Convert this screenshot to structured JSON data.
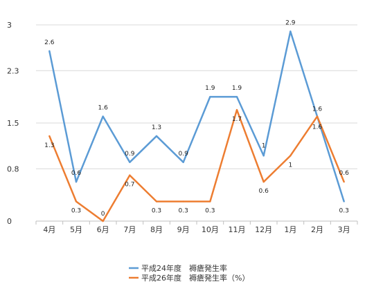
{
  "chart_data": {
    "type": "line",
    "categories": [
      "4月",
      "5月",
      "6月",
      "7月",
      "8月",
      "9月",
      "10月",
      "11月",
      "12月",
      "1月",
      "2月",
      "3月"
    ],
    "yticks": [
      "0",
      "0.8",
      "1.5",
      "2.3",
      "3"
    ],
    "ylim": [
      0,
      3
    ],
    "grid": true,
    "legend_position": "bottom",
    "series": [
      {
        "name": "平成24年度　褥瘡発生率",
        "color": "#5b9bd5",
        "values": [
          2.6,
          0.6,
          1.6,
          0.9,
          1.3,
          0.9,
          1.9,
          1.9,
          1,
          2.9,
          1.6,
          0.3
        ],
        "labels": [
          "2.6",
          "0.6",
          "1.6",
          "0.9",
          "1.3",
          "0.9",
          "1.9",
          "1.9",
          "1",
          "2.9",
          "1.6",
          "0.3"
        ]
      },
      {
        "name": "平成26年度　褥瘡発生率（%）",
        "color": "#ed7d31",
        "values": [
          1.3,
          0.3,
          0,
          0.7,
          0.3,
          0.3,
          0.3,
          1.7,
          0.6,
          1,
          1.6,
          0.6
        ],
        "labels": [
          "1.3",
          "0.3",
          "0",
          "0.7",
          "0.3",
          "0.3",
          "0.3",
          "1.7",
          "0.6",
          "1",
          "1.6",
          "0.6"
        ]
      }
    ]
  }
}
